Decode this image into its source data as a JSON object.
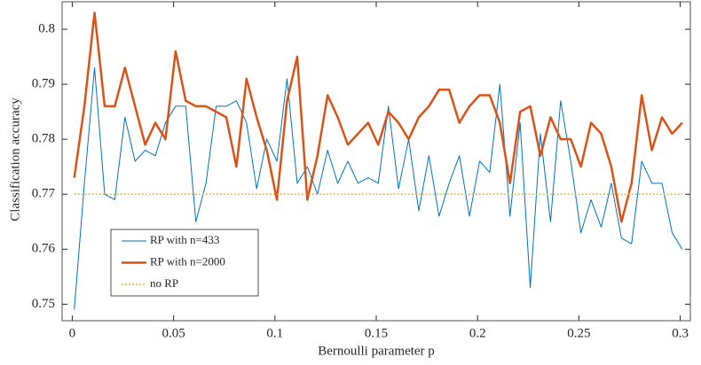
{
  "chart_data": {
    "type": "line",
    "xlabel": "Bernoulli parameter p",
    "ylabel": "Classification accuracy",
    "x": [
      0.001,
      0.006,
      0.011,
      0.016,
      0.021,
      0.026,
      0.031,
      0.036,
      0.041,
      0.046,
      0.051,
      0.056,
      0.061,
      0.066,
      0.071,
      0.076,
      0.081,
      0.086,
      0.091,
      0.096,
      0.101,
      0.106,
      0.111,
      0.116,
      0.121,
      0.126,
      0.131,
      0.136,
      0.141,
      0.146,
      0.151,
      0.156,
      0.161,
      0.166,
      0.171,
      0.176,
      0.181,
      0.186,
      0.191,
      0.196,
      0.201,
      0.206,
      0.211,
      0.216,
      0.221,
      0.226,
      0.231,
      0.236,
      0.241,
      0.246,
      0.251,
      0.256,
      0.261,
      0.266,
      0.271,
      0.276,
      0.281,
      0.286,
      0.291,
      0.296,
      0.301
    ],
    "series": [
      {
        "name": "RP with n=433",
        "color": "#0072bd",
        "width": 1,
        "values": [
          0.749,
          0.772,
          0.793,
          0.77,
          0.769,
          0.784,
          0.776,
          0.778,
          0.777,
          0.783,
          0.786,
          0.786,
          0.765,
          0.772,
          0.786,
          0.786,
          0.787,
          0.783,
          0.771,
          0.78,
          0.776,
          0.791,
          0.772,
          0.775,
          0.77,
          0.778,
          0.772,
          0.776,
          0.772,
          0.773,
          0.772,
          0.786,
          0.771,
          0.78,
          0.767,
          0.777,
          0.766,
          0.772,
          0.777,
          0.766,
          0.776,
          0.774,
          0.79,
          0.766,
          0.783,
          0.753,
          0.781,
          0.765,
          0.787,
          0.776,
          0.763,
          0.769,
          0.764,
          0.772,
          0.762,
          0.761,
          0.776,
          0.772,
          0.772,
          0.763,
          0.76
        ]
      },
      {
        "name": "RP with n=2000",
        "color": "#d95319",
        "width": 2.5,
        "values": [
          0.773,
          0.786,
          0.803,
          0.786,
          0.786,
          0.793,
          0.786,
          0.779,
          0.783,
          0.78,
          0.796,
          0.787,
          0.786,
          0.786,
          0.785,
          0.784,
          0.775,
          0.791,
          0.784,
          0.778,
          0.769,
          0.787,
          0.795,
          0.769,
          0.777,
          0.788,
          0.784,
          0.779,
          0.781,
          0.783,
          0.779,
          0.785,
          0.783,
          0.78,
          0.784,
          0.786,
          0.789,
          0.789,
          0.783,
          0.786,
          0.788,
          0.788,
          0.783,
          0.772,
          0.785,
          0.786,
          0.777,
          0.784,
          0.78,
          0.78,
          0.775,
          0.783,
          0.781,
          0.775,
          0.765,
          0.772,
          0.788,
          0.778,
          0.784,
          0.781,
          0.783
        ]
      },
      {
        "name": "no RP",
        "color": "#edb120",
        "width": 1.5,
        "dash": "2 2",
        "values": [
          0.77,
          0.77,
          0.77,
          0.77,
          0.77,
          0.77,
          0.77,
          0.77,
          0.77,
          0.77,
          0.77,
          0.77,
          0.77,
          0.77,
          0.77,
          0.77,
          0.77,
          0.77,
          0.77,
          0.77,
          0.77,
          0.77,
          0.77,
          0.77,
          0.77,
          0.77,
          0.77,
          0.77,
          0.77,
          0.77,
          0.77,
          0.77,
          0.77,
          0.77,
          0.77,
          0.77,
          0.77,
          0.77,
          0.77,
          0.77,
          0.77,
          0.77,
          0.77,
          0.77,
          0.77,
          0.77,
          0.77,
          0.77,
          0.77,
          0.77,
          0.77,
          0.77,
          0.77,
          0.77,
          0.77,
          0.77,
          0.77,
          0.77,
          0.77,
          0.77,
          0.77
        ]
      }
    ],
    "xlim": [
      -0.005,
      0.305
    ],
    "xticks": [
      0,
      0.05,
      0.1,
      0.15,
      0.2,
      0.25,
      0.3
    ],
    "ylim": [
      0.747,
      0.805
    ],
    "yticks": [
      0.75,
      0.76,
      0.77,
      0.78,
      0.79,
      0.8
    ],
    "legend": "lower left"
  }
}
